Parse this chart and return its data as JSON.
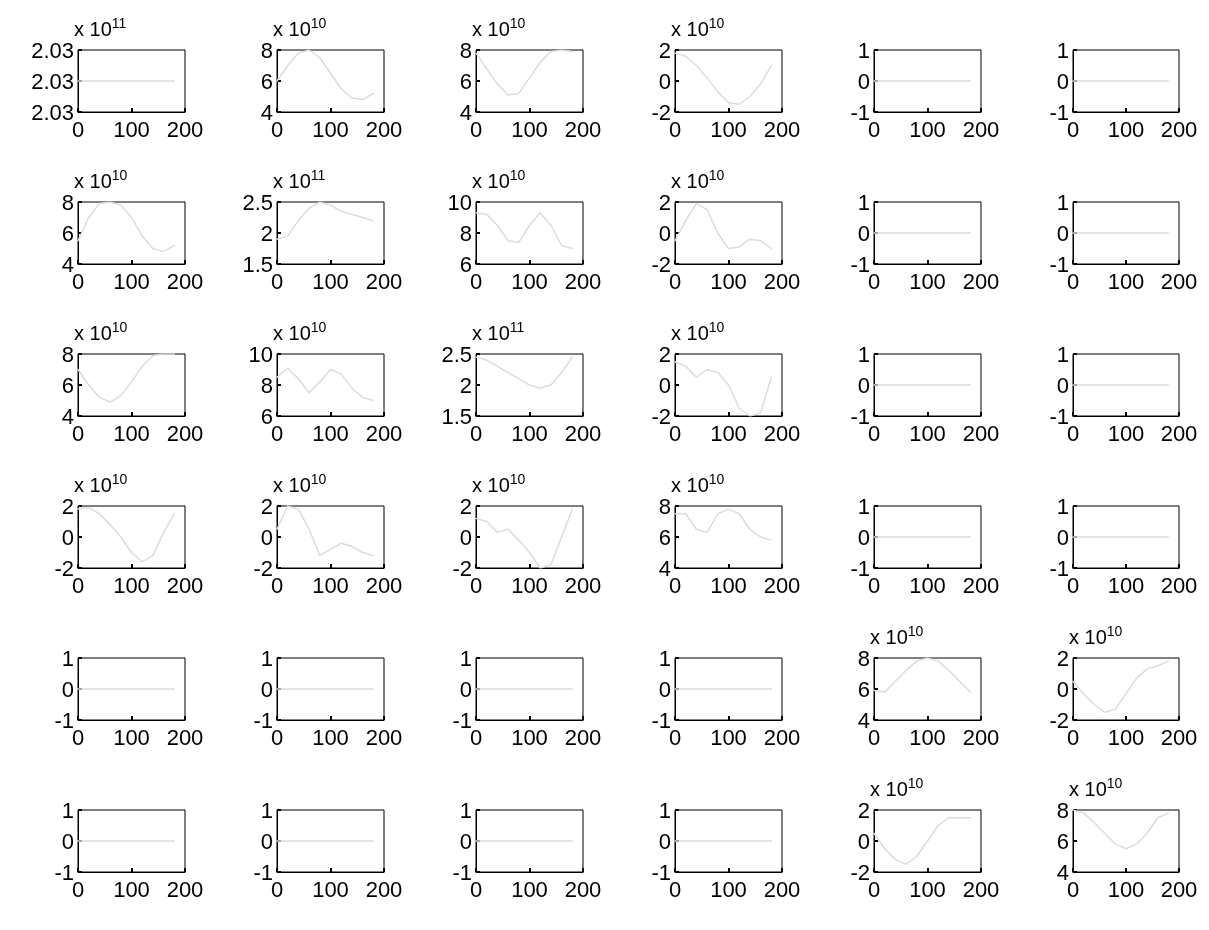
{
  "chart_data": [
    {
      "type": "line",
      "ylabel": "x 10$^{11}$",
      "x": [
        0,
        20,
        40,
        60,
        80,
        100,
        120,
        140,
        160,
        180
      ],
      "values": [
        2.03,
        2.03,
        2.03,
        2.03,
        2.03,
        2.03,
        2.03,
        2.03,
        2.03,
        2.03
      ],
      "color": "#dcdcdc",
      "xlim": [
        0,
        200
      ],
      "xticks": [
        0,
        100,
        200
      ],
      "ylim": [
        2.029,
        2.031
      ],
      "yticks": [
        {
          "value": 2.029,
          "label": "2.03"
        },
        {
          "value": 2.03,
          "label": "2.03"
        },
        {
          "value": 2.031,
          "label": "2.03"
        }
      ],
      "grid": false
    },
    {
      "type": "line",
      "ylabel": "x 10$^{10}$",
      "x": [
        0,
        20,
        40,
        60,
        80,
        100,
        120,
        140,
        160,
        180
      ],
      "values": [
        6,
        7,
        7.8,
        8,
        7.5,
        6.5,
        5.5,
        4.9,
        4.8,
        5.2
      ],
      "color": "#dcdcdc",
      "xlim": [
        0,
        200
      ],
      "xticks": [
        0,
        100,
        200
      ],
      "ylim": [
        4,
        8
      ],
      "yticks": [
        4,
        6,
        8
      ],
      "grid": false
    },
    {
      "type": "line",
      "ylabel": "x 10$^{10}$",
      "x": [
        0,
        20,
        40,
        60,
        80,
        100,
        120,
        140,
        160,
        180
      ],
      "values": [
        7.8,
        6.8,
        5.8,
        5.1,
        5.2,
        6.2,
        7.2,
        7.9,
        8,
        7.9
      ],
      "color": "#dcdcdc",
      "xlim": [
        0,
        200
      ],
      "xticks": [
        0,
        100,
        200
      ],
      "ylim": [
        4,
        8
      ],
      "yticks": [
        4,
        6,
        8
      ],
      "grid": false
    },
    {
      "type": "line",
      "ylabel": "x 10$^{10}$",
      "x": [
        0,
        20,
        40,
        60,
        80,
        100,
        120,
        140,
        160,
        180
      ],
      "values": [
        1.8,
        1.6,
        1,
        0.2,
        -0.7,
        -1.4,
        -1.5,
        -1,
        -0.2,
        1
      ],
      "color": "#dcdcdc",
      "xlim": [
        0,
        200
      ],
      "xticks": [
        0,
        100,
        200
      ],
      "ylim": [
        -2,
        2
      ],
      "yticks": [
        -2,
        0,
        2
      ],
      "grid": false
    },
    {
      "type": "line",
      "x": [
        0,
        20,
        40,
        60,
        80,
        100,
        120,
        140,
        160,
        180
      ],
      "values": [
        0,
        0,
        0,
        0,
        0,
        0,
        0,
        0,
        0,
        0
      ],
      "color": "#dcdcdc",
      "xlim": [
        0,
        200
      ],
      "xticks": [
        0,
        100,
        200
      ],
      "ylim": [
        -1,
        1
      ],
      "yticks": [
        -1,
        0,
        1
      ],
      "grid": false
    },
    {
      "type": "line",
      "x": [
        0,
        20,
        40,
        60,
        80,
        100,
        120,
        140,
        160,
        180
      ],
      "values": [
        0,
        0,
        0,
        0,
        0,
        0,
        0,
        0,
        0,
        0
      ],
      "color": "#dcdcdc",
      "xlim": [
        0,
        200
      ],
      "xticks": [
        0,
        100,
        200
      ],
      "ylim": [
        -1,
        1
      ],
      "yticks": [
        -1,
        0,
        1
      ],
      "grid": false
    },
    {
      "type": "line",
      "ylabel": "x 10$^{10}$",
      "x": [
        0,
        20,
        40,
        60,
        80,
        100,
        120,
        140,
        160,
        180
      ],
      "values": [
        5.5,
        7,
        7.9,
        8,
        7.8,
        7,
        5.8,
        5,
        4.8,
        5.2
      ],
      "color": "#dcdcdc",
      "xlim": [
        0,
        200
      ],
      "xticks": [
        0,
        100,
        200
      ],
      "ylim": [
        4,
        8
      ],
      "yticks": [
        4,
        6,
        8
      ],
      "grid": false
    },
    {
      "type": "line",
      "ylabel": "x 10$^{11}$",
      "x": [
        0,
        20,
        40,
        60,
        80,
        100,
        120,
        140,
        160,
        180
      ],
      "values": [
        1.9,
        1.95,
        2.2,
        2.4,
        2.5,
        2.45,
        2.35,
        2.3,
        2.25,
        2.2
      ],
      "color": "#dcdcdc",
      "xlim": [
        0,
        200
      ],
      "xticks": [
        0,
        100,
        200
      ],
      "ylim": [
        1.5,
        2.5
      ],
      "yticks": [
        1.5,
        2,
        2.5
      ],
      "grid": false
    },
    {
      "type": "line",
      "ylabel": "x 10$^{10}$",
      "x": [
        0,
        20,
        40,
        60,
        80,
        100,
        120,
        140,
        160,
        180
      ],
      "values": [
        9.3,
        9.2,
        8.5,
        7.5,
        7.4,
        8.5,
        9.3,
        8.5,
        7.2,
        7
      ],
      "color": "#dcdcdc",
      "xlim": [
        0,
        200
      ],
      "xticks": [
        0,
        100,
        200
      ],
      "ylim": [
        6,
        10
      ],
      "yticks": [
        6,
        8,
        10
      ],
      "grid": false
    },
    {
      "type": "line",
      "ylabel": "x 10$^{10}$",
      "x": [
        0,
        20,
        40,
        60,
        80,
        100,
        120,
        140,
        160,
        180
      ],
      "values": [
        -0.5,
        0.8,
        1.9,
        1.5,
        0,
        -1,
        -0.9,
        -0.4,
        -0.5,
        -1
      ],
      "color": "#dcdcdc",
      "xlim": [
        0,
        200
      ],
      "xticks": [
        0,
        100,
        200
      ],
      "ylim": [
        -2,
        2
      ],
      "yticks": [
        -2,
        0,
        2
      ],
      "grid": false
    },
    {
      "type": "line",
      "x": [
        0,
        20,
        40,
        60,
        80,
        100,
        120,
        140,
        160,
        180
      ],
      "values": [
        0,
        0,
        0,
        0,
        0,
        0,
        0,
        0,
        0,
        0
      ],
      "color": "#dcdcdc",
      "xlim": [
        0,
        200
      ],
      "xticks": [
        0,
        100,
        200
      ],
      "ylim": [
        -1,
        1
      ],
      "yticks": [
        -1,
        0,
        1
      ],
      "grid": false
    },
    {
      "type": "line",
      "x": [
        0,
        20,
        40,
        60,
        80,
        100,
        120,
        140,
        160,
        180
      ],
      "values": [
        0,
        0,
        0,
        0,
        0,
        0,
        0,
        0,
        0,
        0
      ],
      "color": "#dcdcdc",
      "xlim": [
        0,
        200
      ],
      "xticks": [
        0,
        100,
        200
      ],
      "ylim": [
        -1,
        1
      ],
      "yticks": [
        -1,
        0,
        1
      ],
      "grid": false
    },
    {
      "type": "line",
      "ylabel": "x 10$^{10}$",
      "x": [
        0,
        20,
        40,
        60,
        80,
        100,
        120,
        140,
        160,
        180
      ],
      "values": [
        7,
        6,
        5.2,
        4.9,
        5.3,
        6.2,
        7.2,
        7.9,
        8,
        8
      ],
      "color": "#dcdcdc",
      "xlim": [
        0,
        200
      ],
      "xticks": [
        0,
        100,
        200
      ],
      "ylim": [
        4,
        8
      ],
      "yticks": [
        4,
        6,
        8
      ],
      "grid": false
    },
    {
      "type": "line",
      "ylabel": "x 10$^{10}$",
      "x": [
        0,
        20,
        40,
        60,
        80,
        100,
        120,
        140,
        160,
        180
      ],
      "values": [
        8.5,
        9.1,
        8.4,
        7.5,
        8.2,
        9,
        8.7,
        7.8,
        7.2,
        7
      ],
      "color": "#dcdcdc",
      "xlim": [
        0,
        200
      ],
      "xticks": [
        0,
        100,
        200
      ],
      "ylim": [
        6,
        10
      ],
      "yticks": [
        6,
        8,
        10
      ],
      "grid": false
    },
    {
      "type": "line",
      "ylabel": "x 10$^{11}$",
      "x": [
        0,
        20,
        40,
        60,
        80,
        100,
        120,
        140,
        160,
        180
      ],
      "values": [
        2.45,
        2.4,
        2.3,
        2.2,
        2.1,
        2,
        1.95,
        2,
        2.2,
        2.45
      ],
      "color": "#dcdcdc",
      "xlim": [
        0,
        200
      ],
      "xticks": [
        0,
        100,
        200
      ],
      "ylim": [
        1.5,
        2.5
      ],
      "yticks": [
        1.5,
        2,
        2.5
      ],
      "grid": false
    },
    {
      "type": "line",
      "ylabel": "x 10$^{10}$",
      "x": [
        0,
        20,
        40,
        60,
        80,
        100,
        120,
        140,
        160,
        180
      ],
      "values": [
        1.5,
        1.2,
        0.5,
        1,
        0.8,
        0,
        -1.5,
        -2,
        -1.8,
        0.5
      ],
      "color": "#dcdcdc",
      "xlim": [
        0,
        200
      ],
      "xticks": [
        0,
        100,
        200
      ],
      "ylim": [
        -2,
        2
      ],
      "yticks": [
        -2,
        0,
        2
      ],
      "grid": false
    },
    {
      "type": "line",
      "x": [
        0,
        20,
        40,
        60,
        80,
        100,
        120,
        140,
        160,
        180
      ],
      "values": [
        0,
        0,
        0,
        0,
        0,
        0,
        0,
        0,
        0,
        0
      ],
      "color": "#dcdcdc",
      "xlim": [
        0,
        200
      ],
      "xticks": [
        0,
        100,
        200
      ],
      "ylim": [
        -1,
        1
      ],
      "yticks": [
        -1,
        0,
        1
      ],
      "grid": false
    },
    {
      "type": "line",
      "x": [
        0,
        20,
        40,
        60,
        80,
        100,
        120,
        140,
        160,
        180
      ],
      "values": [
        0,
        0,
        0,
        0,
        0,
        0,
        0,
        0,
        0,
        0
      ],
      "color": "#dcdcdc",
      "xlim": [
        0,
        200
      ],
      "xticks": [
        0,
        100,
        200
      ],
      "ylim": [
        -1,
        1
      ],
      "yticks": [
        -1,
        0,
        1
      ],
      "grid": false
    },
    {
      "type": "line",
      "ylabel": "x 10$^{10}$",
      "x": [
        0,
        20,
        40,
        60,
        80,
        100,
        120,
        140,
        160,
        180
      ],
      "values": [
        1.8,
        1.9,
        1.5,
        0.8,
        0,
        -1,
        -1.6,
        -1.2,
        0.3,
        1.5
      ],
      "color": "#dcdcdc",
      "xlim": [
        0,
        200
      ],
      "xticks": [
        0,
        100,
        200
      ],
      "ylim": [
        -2,
        2
      ],
      "yticks": [
        -2,
        0,
        2
      ],
      "grid": false
    },
    {
      "type": "line",
      "ylabel": "x 10$^{10}$",
      "x": [
        0,
        20,
        40,
        60,
        80,
        100,
        120,
        140,
        160,
        180
      ],
      "values": [
        0.5,
        2,
        1.8,
        0.5,
        -1.2,
        -0.8,
        -0.4,
        -0.6,
        -1,
        -1.2
      ],
      "color": "#dcdcdc",
      "xlim": [
        0,
        200
      ],
      "xticks": [
        0,
        100,
        200
      ],
      "ylim": [
        -2,
        2
      ],
      "yticks": [
        -2,
        0,
        2
      ],
      "grid": false
    },
    {
      "type": "line",
      "ylabel": "x 10$^{10}$",
      "x": [
        0,
        20,
        40,
        60,
        80,
        100,
        120,
        140,
        160,
        180
      ],
      "values": [
        1.2,
        1,
        0.3,
        0.5,
        -0.2,
        -1,
        -2,
        -1.8,
        0,
        1.8
      ],
      "color": "#dcdcdc",
      "xlim": [
        0,
        200
      ],
      "xticks": [
        0,
        100,
        200
      ],
      "ylim": [
        -2,
        2
      ],
      "yticks": [
        -2,
        0,
        2
      ],
      "grid": false
    },
    {
      "type": "line",
      "ylabel": "x 10$^{10}$",
      "x": [
        0,
        20,
        40,
        60,
        80,
        100,
        120,
        140,
        160,
        180
      ],
      "values": [
        7.5,
        7.5,
        6.5,
        6.3,
        7.5,
        7.8,
        7.5,
        6.5,
        6,
        5.8
      ],
      "color": "#dcdcdc",
      "xlim": [
        0,
        200
      ],
      "xticks": [
        0,
        100,
        200
      ],
      "ylim": [
        4,
        8
      ],
      "yticks": [
        4,
        6,
        8
      ],
      "grid": false
    },
    {
      "type": "line",
      "x": [
        0,
        20,
        40,
        60,
        80,
        100,
        120,
        140,
        160,
        180
      ],
      "values": [
        0,
        0,
        0,
        0,
        0,
        0,
        0,
        0,
        0,
        0
      ],
      "color": "#dcdcdc",
      "xlim": [
        0,
        200
      ],
      "xticks": [
        0,
        100,
        200
      ],
      "ylim": [
        -1,
        1
      ],
      "yticks": [
        -1,
        0,
        1
      ],
      "grid": false
    },
    {
      "type": "line",
      "x": [
        0,
        20,
        40,
        60,
        80,
        100,
        120,
        140,
        160,
        180
      ],
      "values": [
        0,
        0,
        0,
        0,
        0,
        0,
        0,
        0,
        0,
        0
      ],
      "color": "#dcdcdc",
      "xlim": [
        0,
        200
      ],
      "xticks": [
        0,
        100,
        200
      ],
      "ylim": [
        -1,
        1
      ],
      "yticks": [
        -1,
        0,
        1
      ],
      "grid": false
    },
    {
      "type": "line",
      "x": [
        0,
        20,
        40,
        60,
        80,
        100,
        120,
        140,
        160,
        180
      ],
      "values": [
        0,
        0,
        0,
        0,
        0,
        0,
        0,
        0,
        0,
        0
      ],
      "color": "#dcdcdc",
      "xlim": [
        0,
        200
      ],
      "xticks": [
        0,
        100,
        200
      ],
      "ylim": [
        -1,
        1
      ],
      "yticks": [
        -1,
        0,
        1
      ],
      "grid": false
    },
    {
      "type": "line",
      "x": [
        0,
        20,
        40,
        60,
        80,
        100,
        120,
        140,
        160,
        180
      ],
      "values": [
        0,
        0,
        0,
        0,
        0,
        0,
        0,
        0,
        0,
        0
      ],
      "color": "#dcdcdc",
      "xlim": [
        0,
        200
      ],
      "xticks": [
        0,
        100,
        200
      ],
      "ylim": [
        -1,
        1
      ],
      "yticks": [
        -1,
        0,
        1
      ],
      "grid": false
    },
    {
      "type": "line",
      "x": [
        0,
        20,
        40,
        60,
        80,
        100,
        120,
        140,
        160,
        180
      ],
      "values": [
        0,
        0,
        0,
        0,
        0,
        0,
        0,
        0,
        0,
        0
      ],
      "color": "#dcdcdc",
      "xlim": [
        0,
        200
      ],
      "xticks": [
        0,
        100,
        200
      ],
      "ylim": [
        -1,
        1
      ],
      "yticks": [
        -1,
        0,
        1
      ],
      "grid": false
    },
    {
      "type": "line",
      "x": [
        0,
        20,
        40,
        60,
        80,
        100,
        120,
        140,
        160,
        180
      ],
      "values": [
        0,
        0,
        0,
        0,
        0,
        0,
        0,
        0,
        0,
        0
      ],
      "color": "#dcdcdc",
      "xlim": [
        0,
        200
      ],
      "xticks": [
        0,
        100,
        200
      ],
      "ylim": [
        -1,
        1
      ],
      "yticks": [
        -1,
        0,
        1
      ],
      "grid": false
    },
    {
      "type": "line",
      "ylabel": "x 10$^{10}$",
      "x": [
        0,
        20,
        40,
        60,
        80,
        100,
        120,
        140,
        160,
        180
      ],
      "values": [
        5.9,
        5.8,
        6.5,
        7.2,
        7.8,
        8,
        7.8,
        7.2,
        6.5,
        5.8
      ],
      "color": "#dcdcdc",
      "xlim": [
        0,
        200
      ],
      "xticks": [
        0,
        100,
        200
      ],
      "ylim": [
        4,
        8
      ],
      "yticks": [
        4,
        6,
        8
      ],
      "grid": false
    },
    {
      "type": "line",
      "ylabel": "x 10$^{10}$",
      "x": [
        0,
        20,
        40,
        60,
        80,
        100,
        120,
        140,
        160,
        180
      ],
      "values": [
        0.5,
        -0.3,
        -1,
        -1.5,
        -1.3,
        -0.3,
        0.7,
        1.3,
        1.5,
        1.8
      ],
      "color": "#dcdcdc",
      "xlim": [
        0,
        200
      ],
      "xticks": [
        0,
        100,
        200
      ],
      "ylim": [
        -2,
        2
      ],
      "yticks": [
        -2,
        0,
        2
      ],
      "grid": false
    },
    {
      "type": "line",
      "x": [
        0,
        20,
        40,
        60,
        80,
        100,
        120,
        140,
        160,
        180
      ],
      "values": [
        0,
        0,
        0,
        0,
        0,
        0,
        0,
        0,
        0,
        0
      ],
      "color": "#dcdcdc",
      "xlim": [
        0,
        200
      ],
      "xticks": [
        0,
        100,
        200
      ],
      "ylim": [
        -1,
        1
      ],
      "yticks": [
        -1,
        0,
        1
      ],
      "grid": false
    },
    {
      "type": "line",
      "x": [
        0,
        20,
        40,
        60,
        80,
        100,
        120,
        140,
        160,
        180
      ],
      "values": [
        0,
        0,
        0,
        0,
        0,
        0,
        0,
        0,
        0,
        0
      ],
      "color": "#dcdcdc",
      "xlim": [
        0,
        200
      ],
      "xticks": [
        0,
        100,
        200
      ],
      "ylim": [
        -1,
        1
      ],
      "yticks": [
        -1,
        0,
        1
      ],
      "grid": false
    },
    {
      "type": "line",
      "x": [
        0,
        20,
        40,
        60,
        80,
        100,
        120,
        140,
        160,
        180
      ],
      "values": [
        0,
        0,
        0,
        0,
        0,
        0,
        0,
        0,
        0,
        0
      ],
      "color": "#dcdcdc",
      "xlim": [
        0,
        200
      ],
      "xticks": [
        0,
        100,
        200
      ],
      "ylim": [
        -1,
        1
      ],
      "yticks": [
        -1,
        0,
        1
      ],
      "grid": false
    },
    {
      "type": "line",
      "x": [
        0,
        20,
        40,
        60,
        80,
        100,
        120,
        140,
        160,
        180
      ],
      "values": [
        0,
        0,
        0,
        0,
        0,
        0,
        0,
        0,
        0,
        0
      ],
      "color": "#dcdcdc",
      "xlim": [
        0,
        200
      ],
      "xticks": [
        0,
        100,
        200
      ],
      "ylim": [
        -1,
        1
      ],
      "yticks": [
        -1,
        0,
        1
      ],
      "grid": false
    },
    {
      "type": "line",
      "ylabel": "x 10$^{10}$",
      "x": [
        0,
        20,
        40,
        60,
        80,
        100,
        120,
        140,
        160,
        180
      ],
      "values": [
        0.5,
        -0.5,
        -1.2,
        -1.5,
        -1,
        0,
        1,
        1.5,
        1.5,
        1.5
      ],
      "color": "#dcdcdc",
      "xlim": [
        0,
        200
      ],
      "xticks": [
        0,
        100,
        200
      ],
      "ylim": [
        -2,
        2
      ],
      "yticks": [
        -2,
        0,
        2
      ],
      "grid": false
    },
    {
      "type": "line",
      "ylabel": "x 10$^{10}$",
      "x": [
        0,
        20,
        40,
        60,
        80,
        100,
        120,
        140,
        160,
        180
      ],
      "values": [
        8,
        7.8,
        7.2,
        6.5,
        5.8,
        5.5,
        5.8,
        6.5,
        7.5,
        7.8
      ],
      "color": "#dcdcdc",
      "xlim": [
        0,
        200
      ],
      "xticks": [
        0,
        100,
        200
      ],
      "ylim": [
        4,
        8
      ],
      "yticks": [
        4,
        6,
        8
      ],
      "grid": false
    }
  ]
}
